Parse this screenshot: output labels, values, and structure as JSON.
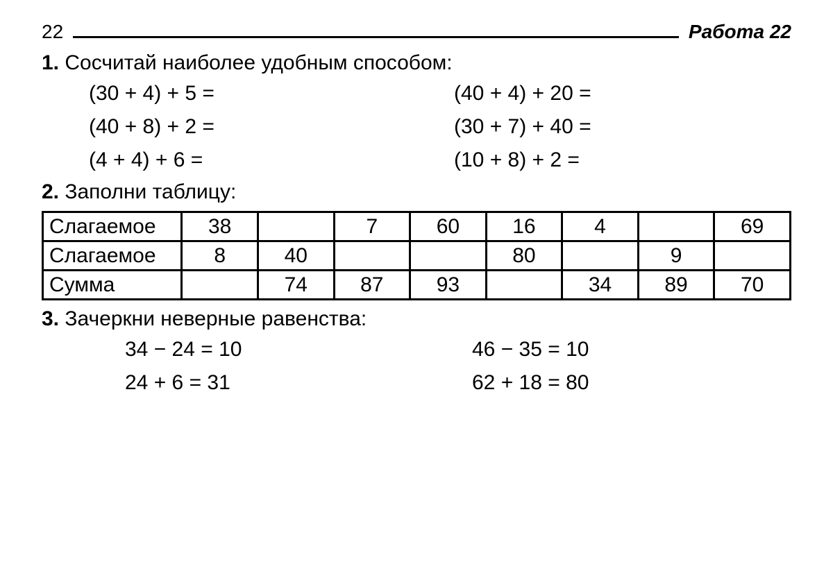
{
  "header": {
    "page_number": "22",
    "work_title": "Работа 22"
  },
  "task1": {
    "number": "1.",
    "text": "Сосчитай наиболее удобным способом:",
    "equations_left": [
      "(30 + 4) + 5 =",
      "(40 + 8) + 2 =",
      "(4 + 4) + 6 ="
    ],
    "equations_right": [
      "(40 + 4) + 20 =",
      "(30 + 7) + 40 =",
      "(10 + 8) + 2 ="
    ]
  },
  "task2": {
    "number": "2.",
    "text": "Заполни таблицу:",
    "table": {
      "rows": [
        {
          "label": "Слагаемое",
          "cells": [
            "38",
            "",
            "7",
            "60",
            "16",
            "4",
            "",
            "69"
          ]
        },
        {
          "label": "Слагаемое",
          "cells": [
            "8",
            "40",
            "",
            "",
            "80",
            "",
            "9",
            ""
          ]
        },
        {
          "label": "Сумма",
          "cells": [
            "",
            "74",
            "87",
            "93",
            "",
            "34",
            "89",
            "70"
          ]
        }
      ]
    }
  },
  "task3": {
    "number": "3.",
    "text": "Зачеркни неверные равенства:",
    "equations_left": [
      "34 − 24 = 10",
      "24 + 6 = 31"
    ],
    "equations_right": [
      "46 − 35 = 10",
      "62 + 18 = 80"
    ]
  }
}
